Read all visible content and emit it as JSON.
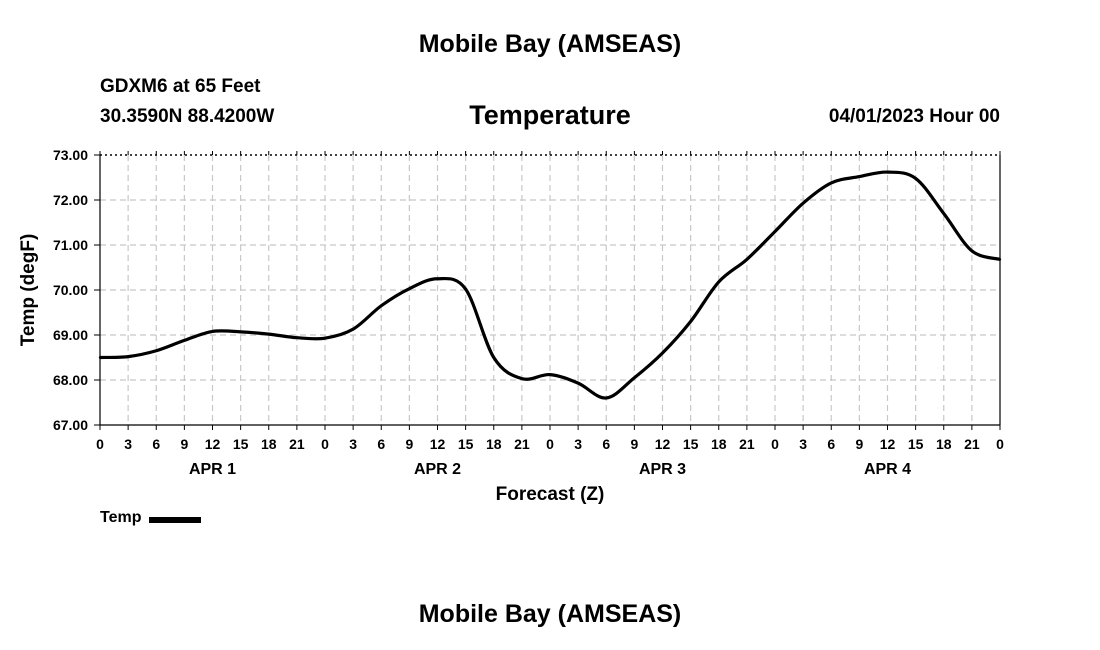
{
  "header": {
    "top_title": "Mobile Bay (AMSEAS)",
    "station": "GDXM6 at 65 Feet",
    "coords": "30.3590N  88.4200W",
    "chart_title": "Temperature",
    "date": "04/01/2023 Hour 00"
  },
  "footer": {
    "bottom_title": "Mobile Bay (AMSEAS)"
  },
  "chart_data": {
    "type": "line",
    "title": "Temperature",
    "xlabel": "Forecast (Z)",
    "ylabel": "Temp (degF)",
    "ylim": [
      67.0,
      73.0
    ],
    "yticks": [
      "67.00",
      "68.00",
      "69.00",
      "70.00",
      "71.00",
      "72.00",
      "73.00"
    ],
    "xlim": [
      0,
      96
    ],
    "xtick_labels": [
      "0",
      "3",
      "6",
      "9",
      "12",
      "15",
      "18",
      "21",
      "0",
      "3",
      "6",
      "9",
      "12",
      "15",
      "18",
      "21",
      "0",
      "3",
      "6",
      "9",
      "12",
      "15",
      "18",
      "21",
      "0",
      "3",
      "6",
      "9",
      "12",
      "15",
      "18",
      "21",
      "0"
    ],
    "day_labels": [
      "APR 1",
      "APR 2",
      "APR 3",
      "APR 4"
    ],
    "grid": true,
    "legend_position": "bottom-left",
    "series": [
      {
        "name": "Temp",
        "color": "#000000",
        "x": [
          0,
          3,
          6,
          9,
          12,
          15,
          18,
          21,
          24,
          27,
          30,
          33,
          36,
          39,
          42,
          45,
          48,
          51,
          54,
          57,
          60,
          63,
          66,
          69,
          72,
          75,
          78,
          81,
          84,
          87,
          90,
          93,
          96
        ],
        "values": [
          68.5,
          68.52,
          68.65,
          68.88,
          69.08,
          69.07,
          69.02,
          68.94,
          68.93,
          69.13,
          69.65,
          70.03,
          70.25,
          70.02,
          68.5,
          68.03,
          68.12,
          67.93,
          67.6,
          68.05,
          68.6,
          69.3,
          70.18,
          70.68,
          71.3,
          71.93,
          72.38,
          72.52,
          72.62,
          72.48,
          71.7,
          70.87,
          70.68
        ]
      }
    ]
  }
}
